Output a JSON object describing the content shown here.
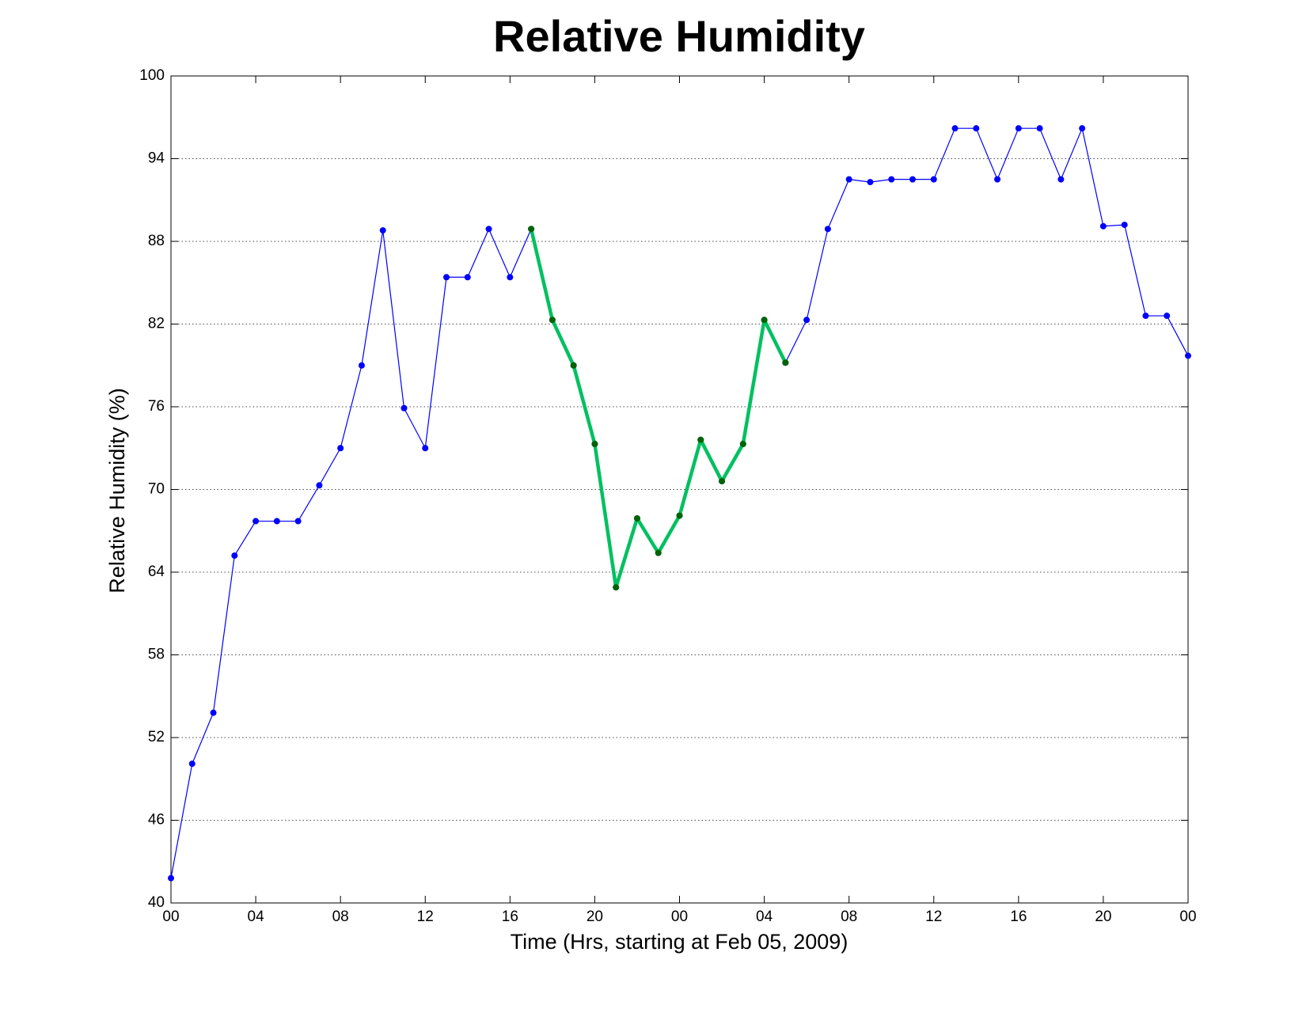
{
  "chart_data": {
    "type": "line",
    "title": "Relative Humidity",
    "x_label": "Time (Hrs, starting at Feb 05, 2009)",
    "y_label": "Relative Humidity (%)",
    "x": [
      0,
      1,
      2,
      3,
      4,
      5,
      6,
      7,
      8,
      9,
      10,
      11,
      12,
      13,
      14,
      15,
      16,
      17,
      18,
      19,
      20,
      21,
      22,
      23,
      24,
      25,
      26,
      27,
      28,
      29,
      30,
      31,
      32,
      33,
      34,
      35,
      36,
      37,
      38,
      39,
      40,
      41,
      42,
      43,
      44,
      45,
      46,
      47,
      48
    ],
    "series": [
      {
        "color": "#0000ff",
        "marker_color": "#0000ff",
        "values": [
          41.8,
          50.1,
          53.8,
          65.2,
          67.7,
          67.7,
          67.7,
          70.3,
          73.0,
          79.0,
          88.8,
          75.9,
          73.0,
          85.4,
          85.4,
          88.9,
          85.4,
          88.9,
          82.3,
          79.0,
          73.3,
          62.9,
          67.9,
          65.4,
          68.1,
          73.6,
          70.6,
          73.3,
          82.3,
          79.2,
          82.3,
          88.9,
          92.5,
          92.3,
          92.5,
          92.5,
          92.5,
          96.2,
          96.2,
          92.5,
          96.2,
          96.2,
          92.5,
          96.2,
          89.1,
          89.2,
          82.6,
          82.6,
          79.7
        ]
      },
      {
        "color": "#00c060",
        "marker_color": "#006400",
        "values": [
          null,
          null,
          null,
          null,
          null,
          null,
          null,
          null,
          null,
          null,
          null,
          null,
          null,
          null,
          null,
          null,
          null,
          88.9,
          82.3,
          79.0,
          73.3,
          62.9,
          67.9,
          65.4,
          68.1,
          73.6,
          70.6,
          73.3,
          82.3,
          79.2,
          null,
          null,
          null,
          null,
          null,
          null,
          null,
          null,
          null,
          null,
          null,
          null,
          null,
          null,
          null,
          null,
          null,
          null,
          null
        ]
      }
    ],
    "xlim": [
      0,
      48
    ],
    "xticks": [
      {
        "value": 0,
        "label": "00"
      },
      {
        "value": 4,
        "label": "04"
      },
      {
        "value": 8,
        "label": "08"
      },
      {
        "value": 12,
        "label": "12"
      },
      {
        "value": 16,
        "label": "16"
      },
      {
        "value": 20,
        "label": "20"
      },
      {
        "value": 24,
        "label": "00"
      },
      {
        "value": 28,
        "label": "04"
      },
      {
        "value": 32,
        "label": "08"
      },
      {
        "value": 36,
        "label": "12"
      },
      {
        "value": 40,
        "label": "16"
      },
      {
        "value": 44,
        "label": "20"
      },
      {
        "value": 48,
        "label": "00"
      }
    ],
    "ylim": [
      40,
      100
    ],
    "yticks": [
      40,
      46,
      52,
      58,
      64,
      70,
      76,
      82,
      88,
      94,
      100
    ],
    "grid": true
  }
}
